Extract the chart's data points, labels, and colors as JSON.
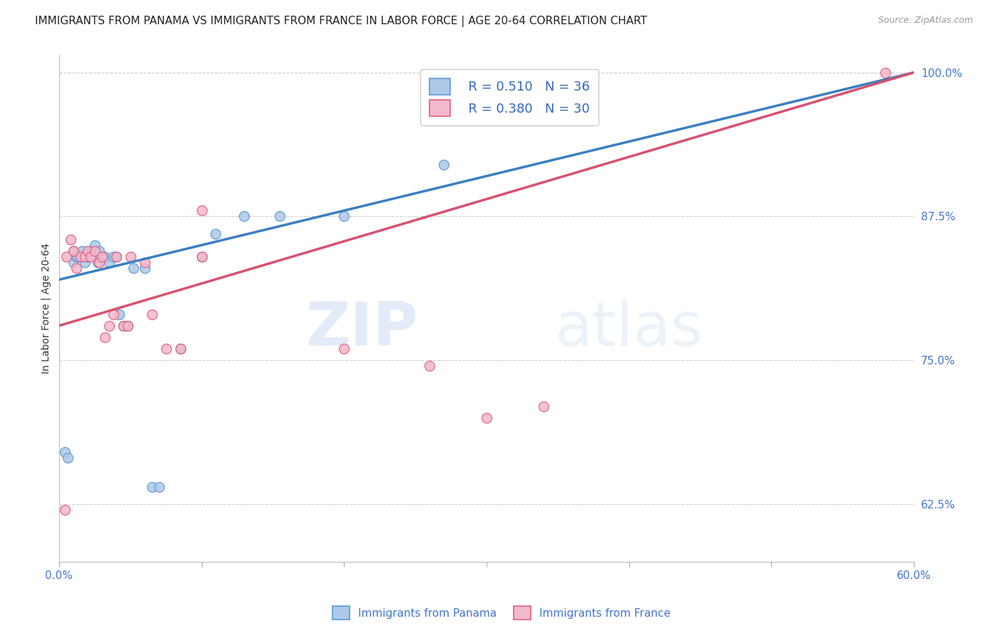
{
  "title": "IMMIGRANTS FROM PANAMA VS IMMIGRANTS FROM FRANCE IN LABOR FORCE | AGE 20-64 CORRELATION CHART",
  "source": "Source: ZipAtlas.com",
  "ylabel": "In Labor Force | Age 20-64",
  "watermark_zip": "ZIP",
  "watermark_atlas": "atlas",
  "xlim": [
    0.0,
    0.6
  ],
  "ylim": [
    0.575,
    1.015
  ],
  "xticks": [
    0.0,
    0.1,
    0.2,
    0.3,
    0.4,
    0.5,
    0.6
  ],
  "xticklabels": [
    "0.0%",
    "",
    "",
    "",
    "",
    "",
    "60.0%"
  ],
  "yticks": [
    0.625,
    0.75,
    0.875,
    1.0
  ],
  "yticklabels": [
    "62.5%",
    "75.0%",
    "87.5%",
    "100.0%"
  ],
  "panama_fill_color": "#adc8e8",
  "panama_edge_color": "#5b9bd5",
  "france_fill_color": "#f4b8cc",
  "france_edge_color": "#e06080",
  "panama_line_color": "#3a7fc1",
  "france_line_color": "#d95070",
  "legend_r_panama": "R = 0.510",
  "legend_n_panama": "N = 36",
  "legend_r_france": "R = 0.380",
  "legend_n_france": "N = 30",
  "panama_scatter_x": [
    0.004,
    0.006,
    0.01,
    0.01,
    0.012,
    0.013,
    0.015,
    0.016,
    0.018,
    0.02,
    0.02,
    0.022,
    0.023,
    0.025,
    0.027,
    0.028,
    0.03,
    0.032,
    0.035,
    0.038,
    0.04,
    0.042,
    0.045,
    0.048,
    0.052,
    0.06,
    0.065,
    0.07,
    0.085,
    0.1,
    0.11,
    0.13,
    0.155,
    0.2,
    0.27,
    0.32
  ],
  "panama_scatter_y": [
    0.67,
    0.665,
    0.835,
    0.845,
    0.84,
    0.84,
    0.84,
    0.845,
    0.835,
    0.84,
    0.84,
    0.845,
    0.845,
    0.85,
    0.835,
    0.845,
    0.84,
    0.84,
    0.835,
    0.84,
    0.84,
    0.79,
    0.78,
    0.78,
    0.83,
    0.83,
    0.64,
    0.64,
    0.76,
    0.84,
    0.86,
    0.875,
    0.875,
    0.875,
    0.92,
    0.96
  ],
  "france_scatter_x": [
    0.004,
    0.005,
    0.008,
    0.01,
    0.012,
    0.015,
    0.018,
    0.02,
    0.022,
    0.025,
    0.028,
    0.03,
    0.032,
    0.035,
    0.038,
    0.04,
    0.045,
    0.048,
    0.05,
    0.06,
    0.065,
    0.075,
    0.085,
    0.1,
    0.2,
    0.26,
    0.3,
    0.34,
    0.58,
    0.1
  ],
  "france_scatter_y": [
    0.62,
    0.84,
    0.855,
    0.845,
    0.83,
    0.84,
    0.84,
    0.845,
    0.84,
    0.845,
    0.835,
    0.84,
    0.77,
    0.78,
    0.79,
    0.84,
    0.78,
    0.78,
    0.84,
    0.835,
    0.79,
    0.76,
    0.76,
    0.84,
    0.76,
    0.745,
    0.7,
    0.71,
    1.0,
    0.88
  ],
  "panama_trend_x0": 0.0,
  "panama_trend_y0": 0.82,
  "panama_trend_x1": 0.6,
  "panama_trend_y1": 1.0,
  "france_trend_x0": 0.0,
  "france_trend_y0": 0.78,
  "france_trend_x1": 0.6,
  "france_trend_y1": 1.0,
  "background_color": "#ffffff",
  "grid_color": "#cccccc",
  "tick_color": "#4477cc",
  "title_fontsize": 11,
  "axis_label_fontsize": 10,
  "tick_fontsize": 11,
  "legend_fontsize": 13
}
